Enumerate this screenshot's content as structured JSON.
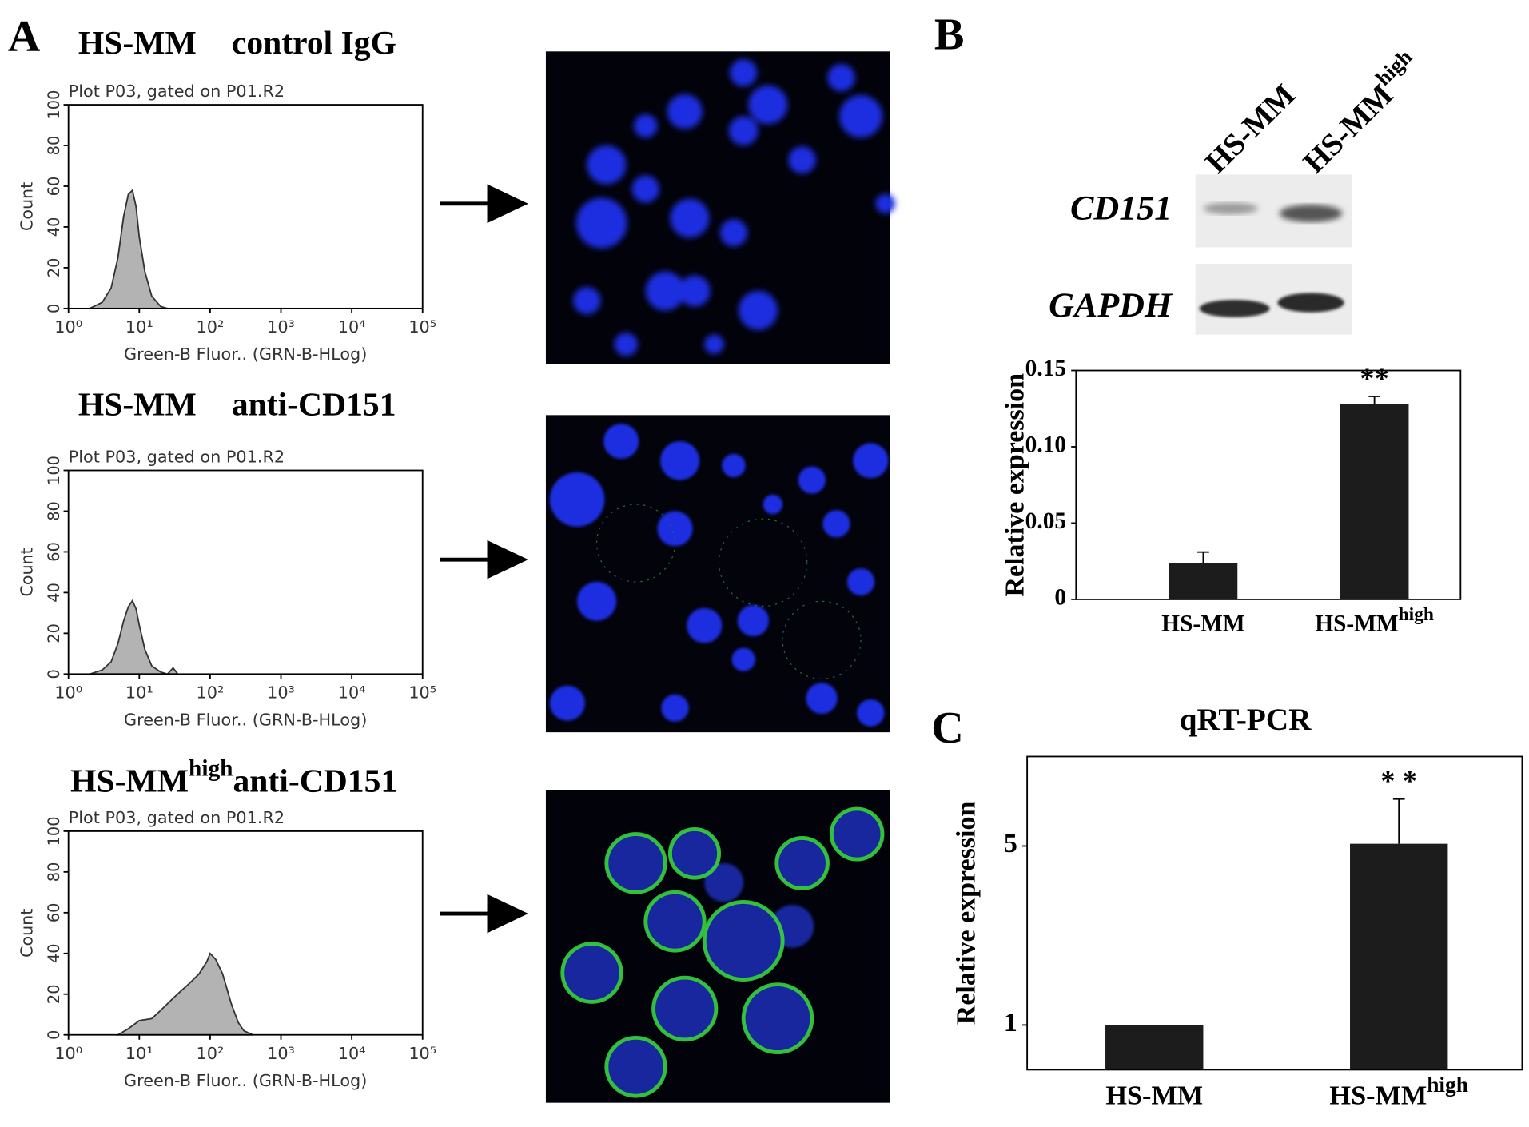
{
  "panel_labels": {
    "a": "A",
    "b": "B",
    "c": "C"
  },
  "blot": {
    "lanes": [
      {
        "main": "HS-MM"
      },
      {
        "main": "HS-MM",
        "sup": "high"
      }
    ],
    "bands": [
      "CD151",
      "GAPDH"
    ]
  },
  "chart_data": [
    {
      "type": "area",
      "heading": {
        "main": "HS-MM",
        "tail": "control IgG"
      },
      "title": "Plot P03, gated on P01.R2",
      "xlabel": "Green-B Fluor.. (GRN-B-HLog)",
      "ylabel": "Count",
      "log_x": true,
      "color": "#b3b3b3",
      "x": [
        2,
        3,
        4,
        5,
        6,
        7,
        8,
        9,
        10,
        12,
        15,
        20,
        25
      ],
      "values": [
        0,
        3,
        10,
        25,
        45,
        56,
        58,
        50,
        35,
        18,
        6,
        1,
        0
      ],
      "xlim": [
        1,
        100000
      ],
      "xticks": [
        {
          "value": 1,
          "label": "10⁰"
        },
        {
          "value": 10,
          "label": "10¹"
        },
        {
          "value": 100,
          "label": "10²"
        },
        {
          "value": 1000,
          "label": "10³"
        },
        {
          "value": 10000,
          "label": "10⁴"
        },
        {
          "value": 100000,
          "label": "10⁵"
        }
      ],
      "ylim": [
        0,
        100
      ],
      "yticks": [
        0,
        20,
        40,
        60,
        80,
        100
      ]
    },
    {
      "type": "area",
      "heading": {
        "main": "HS-MM",
        "tail": "anti-CD151"
      },
      "title": "Plot P03, gated on P01.R2",
      "xlabel": "Green-B Fluor.. (GRN-B-HLog)",
      "ylabel": "Count",
      "log_x": true,
      "color": "#b3b3b3",
      "x": [
        2,
        3,
        4,
        5,
        6,
        7,
        8,
        9,
        10,
        12,
        15,
        20,
        25,
        30,
        35
      ],
      "values": [
        0,
        2,
        6,
        15,
        26,
        33,
        36,
        32,
        24,
        12,
        4,
        1,
        0,
        3,
        0
      ],
      "xlim": [
        1,
        100000
      ],
      "xticks": [
        {
          "value": 1,
          "label": "10⁰"
        },
        {
          "value": 10,
          "label": "10¹"
        },
        {
          "value": 100,
          "label": "10²"
        },
        {
          "value": 1000,
          "label": "10³"
        },
        {
          "value": 10000,
          "label": "10⁴"
        },
        {
          "value": 100000,
          "label": "10⁵"
        }
      ],
      "ylim": [
        0,
        100
      ],
      "yticks": [
        0,
        20,
        40,
        60,
        80,
        100
      ]
    },
    {
      "type": "area",
      "heading": {
        "main": "HS-MM",
        "sup": "high",
        "tail": "anti-CD151"
      },
      "title": "Plot P03, gated on P01.R2",
      "xlabel": "Green-B Fluor.. (GRN-B-HLog)",
      "ylabel": "Count",
      "log_x": true,
      "color": "#b3b3b3",
      "x": [
        5,
        7,
        10,
        15,
        20,
        30,
        40,
        50,
        70,
        90,
        100,
        120,
        150,
        200,
        250,
        300,
        400
      ],
      "values": [
        0,
        3,
        7,
        8,
        12,
        18,
        22,
        25,
        30,
        36,
        40,
        37,
        30,
        15,
        6,
        2,
        0
      ],
      "xlim": [
        1,
        100000
      ],
      "xticks": [
        {
          "value": 1,
          "label": "10⁰"
        },
        {
          "value": 10,
          "label": "10¹"
        },
        {
          "value": 100,
          "label": "10²"
        },
        {
          "value": 1000,
          "label": "10³"
        },
        {
          "value": 10000,
          "label": "10⁴"
        },
        {
          "value": 100000,
          "label": "10⁵"
        }
      ],
      "ylim": [
        0,
        100
      ],
      "yticks": [
        0,
        20,
        40,
        60,
        80,
        100
      ]
    },
    {
      "type": "bar",
      "ylabel": "Relative expression",
      "categories": [
        "HS-MM",
        "HS-MM"
      ],
      "category_superscripts": {
        "1": "high"
      },
      "values": [
        0.024,
        0.128
      ],
      "errors": [
        0.007,
        0.005
      ],
      "color": "#1c1c1c",
      "annotations": {
        "1": "**"
      },
      "ylim": [
        0,
        0.15
      ],
      "yticks": [
        0,
        0.05,
        {
          "value": 0.1,
          "label": "0.10"
        },
        0.15
      ]
    },
    {
      "type": "bar",
      "title": "qRT-PCR",
      "ylabel": "Relative expression",
      "categories": [
        "HS-MM",
        "HS-MM"
      ],
      "category_superscripts": {
        "1": "high"
      },
      "values": [
        1,
        5.05
      ],
      "errors": [
        0,
        1.0
      ],
      "color": "#1c1c1c",
      "annotations": {
        "1": "* *"
      },
      "ylim": [
        0,
        7
      ],
      "yticks": [
        1,
        5
      ]
    }
  ]
}
